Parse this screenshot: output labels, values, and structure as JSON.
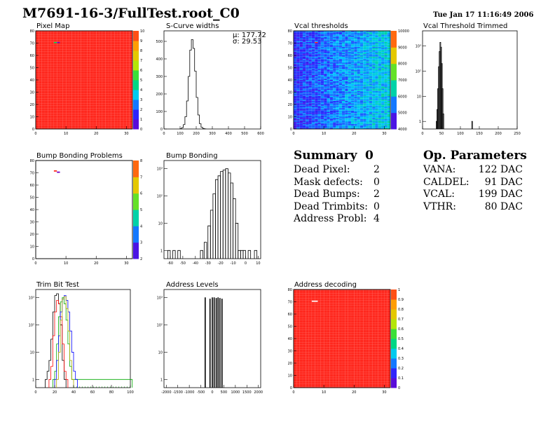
{
  "header": {
    "title": "M7691-16-3/FullTest.root_C0",
    "datestamp": "Tue Jan 17 11:16:49 2006"
  },
  "panels": {
    "pixel_map": {
      "title": "Pixel Map",
      "xticks": [
        "0",
        "10",
        "20",
        "30"
      ],
      "yticks": [
        "0",
        "10",
        "20",
        "30",
        "40",
        "50",
        "60",
        "70",
        "80"
      ],
      "zticks": [
        "0",
        "1",
        "2",
        "3",
        "4",
        "5",
        "6",
        "7",
        "8",
        "9",
        "10"
      ]
    },
    "scurve": {
      "title": "S-Curve widths",
      "xticks": [
        "0",
        "100",
        "200",
        "300",
        "400",
        "500",
        "600"
      ],
      "yticks": [
        "0",
        "100",
        "200",
        "300",
        "400",
        "500"
      ],
      "stats": {
        "mean_label": "μ: 177.72",
        "sigma_label": "σ: 29.53"
      }
    },
    "vcal": {
      "title": "Vcal thresholds",
      "xticks": [
        "0",
        "10",
        "20",
        "30"
      ],
      "yticks": [
        "0",
        "10",
        "20",
        "30",
        "40",
        "50",
        "60",
        "70",
        "80"
      ],
      "zticks": [
        "4000",
        "5000",
        "6000",
        "7000",
        "8000",
        "9000",
        "10000"
      ]
    },
    "vcal_trim": {
      "title": "Vcal Threshold Trimmed",
      "xticks": [
        "0",
        "50",
        "100",
        "150",
        "200",
        "250"
      ],
      "yticks": [
        "1",
        "10",
        "10²",
        "10³"
      ]
    },
    "bump_problems": {
      "title": "Bump Bonding Problems",
      "xticks": [
        "0",
        "10",
        "20",
        "30"
      ],
      "yticks": [
        "0",
        "10",
        "20",
        "30",
        "40",
        "50",
        "60",
        "70",
        "80"
      ],
      "zticks": [
        "2",
        "3",
        "4",
        "5",
        "6",
        "7",
        "8"
      ]
    },
    "bump": {
      "title": "Bump Bonding",
      "xticks": [
        "-60",
        "-50",
        "-40",
        "-30",
        "-20",
        "-10",
        "0",
        "10"
      ],
      "yticks": [
        "1",
        "10",
        "10²",
        "10³"
      ]
    },
    "trimbit": {
      "title": "Trim Bit Test",
      "xticks": [
        "0",
        "20",
        "40",
        "60",
        "80",
        "100"
      ],
      "yticks": [
        "1",
        "10",
        "10²",
        "10³"
      ]
    },
    "address_levels": {
      "title": "Address Levels",
      "xticks": [
        "-2000",
        "-1500",
        "-1000",
        "-500",
        "0",
        "500",
        "1000",
        "1500",
        "2000"
      ],
      "yticks": [
        "1",
        "10",
        "10²",
        "10³"
      ]
    },
    "address_decoding": {
      "title": "Address decoding",
      "xticks": [
        "0",
        "10",
        "20",
        "30"
      ],
      "yticks": [
        "0",
        "10",
        "20",
        "30",
        "40",
        "50",
        "60",
        "70",
        "80"
      ],
      "zticks": [
        "0",
        "0.1",
        "0.2",
        "0.3",
        "0.4",
        "0.5",
        "0.6",
        "0.7",
        "0.8",
        "0.9",
        "1"
      ]
    }
  },
  "summary": {
    "title": "Summary",
    "total": "0",
    "rows": [
      {
        "label": "Dead Pixel:",
        "value": "2"
      },
      {
        "label": "Mask defects:",
        "value": "0"
      },
      {
        "label": "Dead Bumps:",
        "value": "2"
      },
      {
        "label": "Dead Trimbits:",
        "value": "0"
      },
      {
        "label": "Address Probl:",
        "value": "4"
      }
    ]
  },
  "op_params": {
    "title": "Op. Parameters",
    "rows": [
      {
        "label": "VANA:",
        "value": "122 DAC"
      },
      {
        "label": "CALDEL:",
        "value": "91 DAC"
      },
      {
        "label": "VCAL:",
        "value": "199 DAC"
      },
      {
        "label": "VTHR:",
        "value": "80 DAC"
      }
    ]
  },
  "chart_data": [
    {
      "type": "heatmap",
      "title": "Pixel Map",
      "xlim": [
        0,
        32
      ],
      "ylim": [
        0,
        80
      ],
      "zlim": [
        0,
        10
      ],
      "background_value": 10,
      "special_cells": [
        {
          "x": 6,
          "y": 70,
          "value": 5
        },
        {
          "x": 7,
          "y": 70,
          "value": 0
        }
      ]
    },
    {
      "type": "bar",
      "title": "S-Curve widths",
      "xlim": [
        0,
        600
      ],
      "ylim": [
        0,
        560
      ],
      "mean": 177.72,
      "sigma": 29.53,
      "x": [
        100,
        110,
        120,
        130,
        140,
        150,
        160,
        170,
        180,
        190,
        200,
        210,
        220,
        230,
        240,
        250
      ],
      "values": [
        2,
        8,
        25,
        70,
        160,
        300,
        450,
        510,
        460,
        330,
        180,
        80,
        30,
        10,
        3,
        1
      ]
    },
    {
      "type": "heatmap",
      "title": "Vcal thresholds",
      "xlim": [
        0,
        32
      ],
      "ylim": [
        0,
        80
      ],
      "zlim": [
        3600,
        10800
      ],
      "hot_cell": {
        "x": 7,
        "y": 70,
        "value": 10800
      }
    },
    {
      "type": "bar",
      "title": "Vcal Threshold Trimmed",
      "xlim": [
        0,
        250
      ],
      "ylim": [
        0.5,
        4000
      ],
      "log_y": true,
      "x": [
        36,
        38,
        40,
        42,
        44,
        46,
        48,
        50,
        52,
        54,
        130
      ],
      "values": [
        1,
        3,
        20,
        150,
        600,
        1400,
        900,
        200,
        20,
        2,
        1
      ]
    },
    {
      "type": "heatmap",
      "title": "Bump Bonding Problems",
      "xlim": [
        0,
        32
      ],
      "ylim": [
        0,
        80
      ],
      "zlim": [
        2,
        8
      ],
      "cells": [
        {
          "x": 6,
          "y": 71,
          "value": 8
        },
        {
          "x": 7,
          "y": 70,
          "value": 2
        }
      ]
    },
    {
      "type": "bar",
      "title": "Bump Bonding",
      "xlim": [
        -65,
        12
      ],
      "ylim": [
        0.5,
        2000
      ],
      "log_y": true,
      "x": [
        -62,
        -58,
        -54,
        -36,
        -33,
        -30,
        -28,
        -26,
        -24,
        -22,
        -20,
        -18,
        -16,
        -14,
        -12,
        -10,
        -8,
        -6,
        -4,
        -2,
        2,
        7
      ],
      "values": [
        1,
        1,
        1,
        1,
        2,
        8,
        30,
        120,
        400,
        550,
        800,
        900,
        1000,
        700,
        300,
        80,
        10,
        1,
        1,
        1,
        1,
        1
      ]
    },
    {
      "type": "line",
      "title": "Trim Bit Test",
      "xlim": [
        0,
        100
      ],
      "ylim": [
        0.5,
        2000
      ],
      "log_y": true,
      "series": [
        {
          "color": "#000000",
          "x": [
            10,
            12,
            14,
            16,
            18,
            20,
            22,
            24,
            26,
            28,
            30
          ],
          "values": [
            1,
            2,
            5,
            30,
            300,
            1200,
            1400,
            600,
            100,
            5,
            1
          ]
        },
        {
          "color": "#ff0000",
          "x": [
            14,
            16,
            18,
            20,
            22,
            24,
            26,
            28,
            30,
            32
          ],
          "values": [
            1,
            3,
            40,
            300,
            800,
            600,
            200,
            20,
            2,
            1
          ]
        },
        {
          "color": "#00aa00",
          "x": [
            18,
            20,
            22,
            24,
            26,
            28,
            30,
            32,
            34,
            36,
            38,
            40,
            100
          ],
          "values": [
            1,
            2,
            20,
            200,
            700,
            1000,
            600,
            150,
            20,
            3,
            1,
            1,
            1
          ]
        },
        {
          "color": "#0000ff",
          "x": [
            20,
            22,
            24,
            26,
            28,
            30,
            32,
            34,
            36,
            38,
            40,
            42
          ],
          "values": [
            1,
            5,
            40,
            300,
            900,
            1200,
            800,
            300,
            60,
            10,
            2,
            1
          ]
        },
        {
          "color": "#aaaa00",
          "x": [
            22,
            24,
            26,
            28,
            30,
            32,
            34,
            36,
            38
          ],
          "values": [
            1,
            10,
            150,
            900,
            1100,
            400,
            60,
            5,
            1
          ]
        }
      ]
    },
    {
      "type": "bar",
      "title": "Address Levels",
      "xlim": [
        -2100,
        2100
      ],
      "ylim": [
        0.5,
        2000
      ],
      "log_y": true,
      "x": [
        -310,
        -100,
        0,
        80,
        170,
        250,
        330,
        420
      ],
      "values": [
        1000,
        900,
        1000,
        1000,
        950,
        1000,
        950,
        900
      ]
    },
    {
      "type": "heatmap",
      "title": "Address decoding",
      "xlim": [
        0,
        32
      ],
      "ylim": [
        0,
        80
      ],
      "zlim": [
        0,
        1
      ],
      "background_value": 1,
      "special_cells": [
        {
          "x": 6,
          "y": 70,
          "value": 0
        },
        {
          "x": 7,
          "y": 70,
          "value": 0
        }
      ]
    }
  ]
}
